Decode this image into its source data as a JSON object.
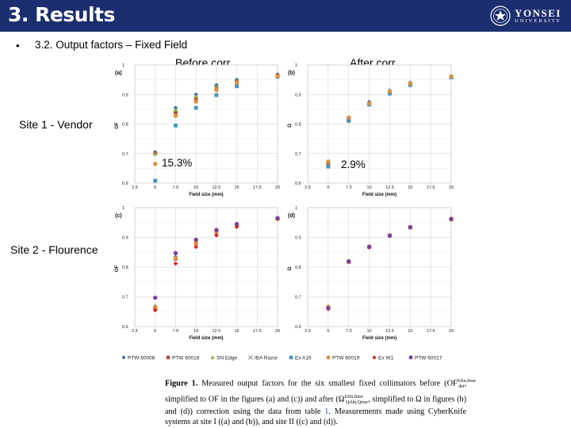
{
  "header": {
    "title": "3. Results",
    "logo_main": "YONSEI",
    "logo_sub": "UNIVERSITY"
  },
  "bullet": {
    "marker": "•",
    "text": "3.2. Output factors – Fixed Field"
  },
  "columns": {
    "before": "Before corr.",
    "after": "After corr."
  },
  "sites": {
    "site1": "Site 1 - Vendor",
    "site2": "Site 2 -  Flourence"
  },
  "annotations": {
    "before_pct": "15.3%",
    "after_pct": "2.9%"
  },
  "caption": {
    "lead": "Figure  1.",
    "body": " Measured output factors for the six smallest fixed collimators before (OF",
    "sup1": "fclin,fmsr",
    "sub1": "det",
    "mid1": ", simplified to OF in the figures (a) and (c)) and after (Ω",
    "sup2": "fclin,fmsr",
    "sub2": "Qclin,Qmsr",
    "mid2": ", simplified to Ω in figures (b) and (d)) correction using the data from table ",
    "ref": "1",
    "tail": ". Measurements made using CyberKnife systems at site I ((a) and (b)), and site II ((c) and (d))."
  },
  "colors": {
    "header_bg": "#1b2f6e",
    "PTW 60008": "#3c6fa3",
    "PTW 60018": "#b04a3e",
    "SN Edge": "#8fa83a",
    "IBA Razor": "#7a7a7a",
    "Ex A16": "#3d93c6",
    "PTW 60019": "#e38c3a",
    "Ex W1": "#e0211b",
    "PTW 60017": "#7b3e9e",
    "ref_text": "#2a4fbf"
  },
  "chart_data": [
    {
      "type": "scatter",
      "panel_label": "(a)",
      "xlabel": "Field size (mm)",
      "ylabel": "OF",
      "xlim": [
        2.5,
        20
      ],
      "ylim": [
        0.6,
        1.0
      ],
      "xticks": [
        "2.5",
        "5",
        "7.5",
        "10",
        "12.5",
        "15",
        "17.5",
        "20"
      ],
      "yticks": [
        "0.6",
        "0.7",
        "0.8",
        "0.9",
        "1"
      ],
      "x": [
        5,
        7.5,
        10,
        12.5,
        15,
        20
      ],
      "series": [
        {
          "name": "PTW 60008",
          "marker": "diamond",
          "values": [
            0.705,
            0.855,
            0.9,
            0.932,
            0.95,
            0.968
          ]
        },
        {
          "name": "PTW 60018",
          "marker": "square",
          "values": [
            0.7,
            0.84,
            0.887,
            0.922,
            0.944,
            0.964
          ]
        },
        {
          "name": "SN Edge",
          "marker": "triangle",
          "values": [
            0.7,
            0.848,
            0.893,
            0.926,
            0.945,
            0.963
          ]
        },
        {
          "name": "Ex A16",
          "marker": "square",
          "values": [
            0.608,
            0.795,
            0.855,
            0.898,
            0.928,
            0.96
          ]
        },
        {
          "name": "PTW 60019",
          "marker": "circle",
          "values": [
            0.665,
            0.828,
            0.876,
            0.915,
            0.94,
            0.962
          ]
        }
      ]
    },
    {
      "type": "scatter",
      "panel_label": "(b)",
      "xlabel": "Field size (mm)",
      "ylabel": "Ω",
      "xlim": [
        2.5,
        20
      ],
      "ylim": [
        0.6,
        1.0
      ],
      "xticks": [
        "2.5",
        "5",
        "7.5",
        "10",
        "12.5",
        "15",
        "17.5",
        "20"
      ],
      "yticks": [
        "0.6",
        "0.7",
        "0.8",
        "0.9",
        "1"
      ],
      "x": [
        5,
        7.5,
        10,
        12.5,
        15,
        20
      ],
      "series": [
        {
          "name": "PTW 60008",
          "marker": "diamond",
          "values": [
            0.662,
            0.816,
            0.875,
            0.913,
            0.94,
            0.962
          ]
        },
        {
          "name": "PTW 60018",
          "marker": "square",
          "values": [
            0.663,
            0.815,
            0.868,
            0.908,
            0.936,
            0.96
          ]
        },
        {
          "name": "SN Edge",
          "marker": "triangle",
          "values": [
            0.66,
            0.81,
            0.867,
            0.906,
            0.934,
            0.958
          ]
        },
        {
          "name": "Ex A16",
          "marker": "square",
          "values": [
            0.656,
            0.812,
            0.866,
            0.903,
            0.932,
            0.958
          ]
        },
        {
          "name": "PTW 60019",
          "marker": "circle",
          "values": [
            0.673,
            0.822,
            0.87,
            0.91,
            0.937,
            0.961
          ]
        }
      ]
    },
    {
      "type": "scatter",
      "panel_label": "(c)",
      "xlabel": "Field size (mm)",
      "ylabel": "OF",
      "xlim": [
        2.5,
        20
      ],
      "ylim": [
        0.6,
        1.0
      ],
      "xticks": [
        "2.5",
        "5",
        "7.5",
        "10",
        "12.5",
        "15",
        "17.5",
        "20"
      ],
      "yticks": [
        "0.6",
        "0.7",
        "0.8",
        "0.9",
        "1"
      ],
      "x": [
        5,
        7.5,
        10,
        12.5,
        15,
        20
      ],
      "series": [
        {
          "name": "PTW 60008",
          "marker": "diamond",
          "values": [
            0.668,
            0.834,
            0.884,
            0.922,
            0.942,
            0.964
          ]
        },
        {
          "name": "PTW 60018",
          "marker": "square",
          "values": [
            0.662,
            0.828,
            0.88,
            0.92,
            0.94,
            0.963
          ]
        },
        {
          "name": "PTW 60019",
          "marker": "circle",
          "values": [
            0.665,
            0.83,
            0.882,
            0.917,
            0.94,
            0.963
          ]
        },
        {
          "name": "Ex W1",
          "marker": "diamond",
          "values": [
            0.655,
            0.812,
            0.868,
            0.907,
            0.935,
            0.962
          ]
        },
        {
          "name": "PTW 60017",
          "marker": "circle",
          "values": [
            0.697,
            0.847,
            0.892,
            0.925,
            0.945,
            0.965
          ]
        }
      ]
    },
    {
      "type": "scatter",
      "panel_label": "(d)",
      "xlabel": "Field size (mm)",
      "ylabel": "Ω",
      "xlim": [
        2.5,
        20
      ],
      "ylim": [
        0.6,
        1.0
      ],
      "xticks": [
        "2.5",
        "5",
        "7.5",
        "10",
        "12.5",
        "15",
        "17.5",
        "20"
      ],
      "yticks": [
        "0.6",
        "0.7",
        "0.8",
        "0.9",
        "1"
      ],
      "x": [
        5,
        7.5,
        10,
        12.5,
        15,
        20
      ],
      "series": [
        {
          "name": "PTW 60008",
          "marker": "diamond",
          "values": [
            0.666,
            0.82,
            0.87,
            0.907,
            0.935,
            0.962
          ]
        },
        {
          "name": "PTW 60018",
          "marker": "square",
          "values": [
            0.663,
            0.818,
            0.868,
            0.906,
            0.934,
            0.961
          ]
        },
        {
          "name": "PTW 60019",
          "marker": "circle",
          "values": [
            0.667,
            0.82,
            0.869,
            0.907,
            0.935,
            0.96
          ]
        },
        {
          "name": "Ex W1",
          "marker": "diamond",
          "values": [
            0.659,
            0.818,
            0.866,
            0.905,
            0.933,
            0.963
          ]
        },
        {
          "name": "PTW 60017",
          "marker": "circle",
          "values": [
            0.662,
            0.819,
            0.868,
            0.906,
            0.934,
            0.962
          ]
        }
      ]
    }
  ],
  "legend": [
    {
      "name": "PTW 60008",
      "marker": "diamond"
    },
    {
      "name": "PTW 60018",
      "marker": "square"
    },
    {
      "name": "SN Edge",
      "marker": "triangle"
    },
    {
      "name": "IBA Razor",
      "marker": "x"
    },
    {
      "name": "Ex A16",
      "marker": "square"
    },
    {
      "name": "PTW 60019",
      "marker": "circle"
    },
    {
      "name": "Ex W1",
      "marker": "diamond"
    },
    {
      "name": "PTW 60017",
      "marker": "circle"
    }
  ]
}
